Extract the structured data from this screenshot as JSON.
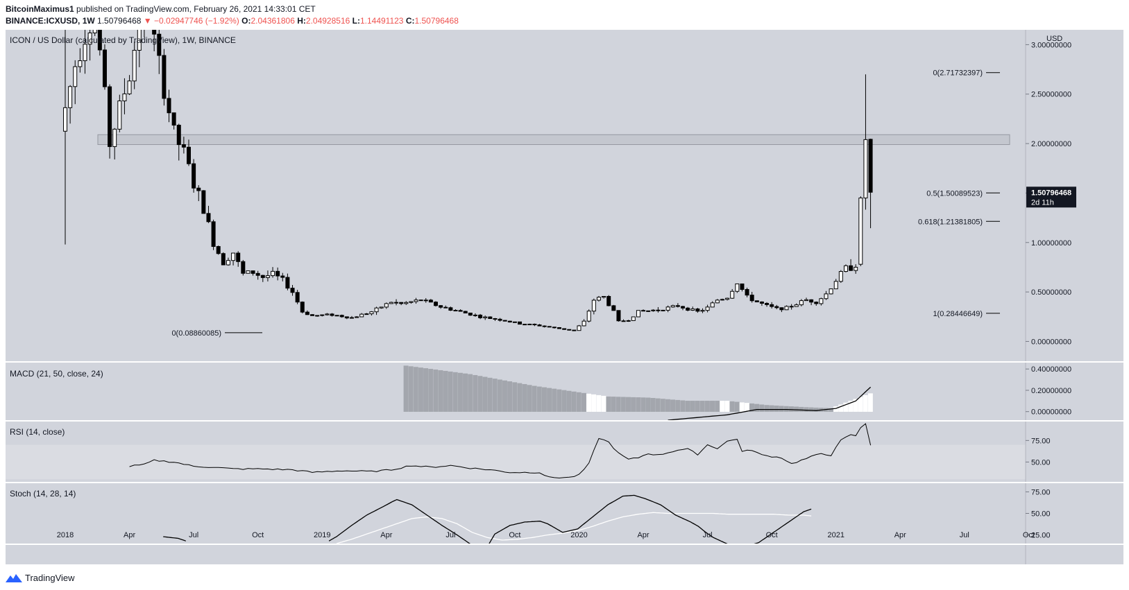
{
  "header": {
    "author": "BitcoinMaximus1",
    "published": "published on TradingView.com, February 26, 2021 14:33:01 CET",
    "symbol": "BINANCE:ICXUSD",
    "interval": "1W",
    "last": "1.50796468",
    "change": "−0.02947746 (−1.92%)",
    "o_label": "O:",
    "o": "2.04361806",
    "h_label": "H:",
    "h": "2.04928516",
    "l_label": "L:",
    "l": "1.14491123",
    "c_label": "C:",
    "c": "1.50796468"
  },
  "brand": "TradingView",
  "colors": {
    "panel_bg": "#d1d4dc",
    "rsi_band": "#dadce2",
    "text": "#131722",
    "down": "#ef5350",
    "price_tag": "#131722"
  },
  "chart_data": {
    "type": "candlestick",
    "title": "ICON / US Dollar (calculated by TradingView), 1W, BINANCE",
    "currency": "USD",
    "ylim": [
      -0.2,
      3.15
    ],
    "y_ticks": [
      "3.00000000",
      "2.50000000",
      "2.00000000",
      "1.50000000",
      "1.00000000",
      "0.50000000",
      "0.00000000"
    ],
    "y_tick_values": [
      3.0,
      2.5,
      2.0,
      1.5,
      1.0,
      0.5,
      0.0
    ],
    "x_ticks": [
      "2018",
      "Apr",
      "Jul",
      "Oct",
      "2019",
      "Apr",
      "Jul",
      "Oct",
      "2020",
      "Apr",
      "Jul",
      "Oct",
      "2021",
      "Apr",
      "Jul",
      "Oct"
    ],
    "x_tick_weeks": [
      0,
      13,
      26,
      39,
      52,
      65,
      78,
      91,
      104,
      117,
      130,
      143,
      156,
      169,
      182,
      195
    ],
    "last_price_label": "1.50796468",
    "countdown": "2d 11h",
    "resistance_zone": [
      1.99,
      2.09
    ],
    "fib_levels": [
      {
        "label": "0(2.71732397)",
        "value": 2.71732397
      },
      {
        "label": "0.5(1.50089523)",
        "value": 1.50089523
      },
      {
        "label": "0.618(1.21381805)",
        "value": 1.21381805
      },
      {
        "label": "1(0.28446649)",
        "value": 0.28446649
      }
    ],
    "low_marker": {
      "label": "0(0.08860085)",
      "value": 0.08860085
    },
    "close_anchors": [
      [
        -2,
        1.9
      ],
      [
        2,
        2.8
      ],
      [
        6,
        3.4
      ],
      [
        9,
        2.0
      ],
      [
        13,
        2.7
      ],
      [
        16,
        3.5
      ],
      [
        19,
        2.8
      ],
      [
        22,
        2.1
      ],
      [
        24,
        1.9
      ],
      [
        26,
        1.6
      ],
      [
        28,
        1.35
      ],
      [
        30,
        1.0
      ],
      [
        32,
        0.8
      ],
      [
        34,
        0.9
      ],
      [
        36,
        0.68
      ],
      [
        38,
        0.7
      ],
      [
        40,
        0.65
      ],
      [
        42,
        0.68
      ],
      [
        44,
        0.62
      ],
      [
        46,
        0.5
      ],
      [
        48,
        0.3
      ],
      [
        50,
        0.26
      ],
      [
        54,
        0.27
      ],
      [
        58,
        0.24
      ],
      [
        62,
        0.3
      ],
      [
        64,
        0.35
      ],
      [
        66,
        0.4
      ],
      [
        68,
        0.38
      ],
      [
        72,
        0.42
      ],
      [
        76,
        0.35
      ],
      [
        80,
        0.3
      ],
      [
        84,
        0.25
      ],
      [
        88,
        0.22
      ],
      [
        92,
        0.18
      ],
      [
        96,
        0.16
      ],
      [
        100,
        0.13
      ],
      [
        103,
        0.11
      ],
      [
        105,
        0.2
      ],
      [
        107,
        0.42
      ],
      [
        109,
        0.45
      ],
      [
        111,
        0.3
      ],
      [
        112,
        0.2
      ],
      [
        114,
        0.22
      ],
      [
        116,
        0.3
      ],
      [
        120,
        0.32
      ],
      [
        124,
        0.36
      ],
      [
        128,
        0.3
      ],
      [
        130,
        0.34
      ],
      [
        132,
        0.42
      ],
      [
        134,
        0.45
      ],
      [
        136,
        0.6
      ],
      [
        138,
        0.45
      ],
      [
        140,
        0.4
      ],
      [
        142,
        0.36
      ],
      [
        144,
        0.33
      ],
      [
        146,
        0.34
      ],
      [
        148,
        0.38
      ],
      [
        150,
        0.42
      ],
      [
        152,
        0.4
      ],
      [
        154,
        0.48
      ],
      [
        156,
        0.62
      ],
      [
        158,
        0.74
      ],
      [
        160,
        0.75
      ],
      [
        161,
        1.45
      ],
      [
        162,
        2.04
      ],
      [
        163,
        1.508
      ]
    ],
    "macd": {
      "label": "MACD (21, 50, close, 24)",
      "ylim": [
        -0.08,
        0.46
      ],
      "y_ticks": [
        "0.40000000",
        "0.20000000",
        "0.00000000"
      ],
      "y_tick_values": [
        0.4,
        0.2,
        0.0
      ],
      "hist_start_week": 69,
      "hist_end_week": 163,
      "hist_anchors": [
        [
          69,
          0.43
        ],
        [
          82,
          0.35
        ],
        [
          95,
          0.24
        ],
        [
          104,
          0.18
        ],
        [
          110,
          0.14
        ],
        [
          118,
          0.13
        ],
        [
          126,
          0.1
        ],
        [
          134,
          0.1
        ],
        [
          142,
          0.06
        ],
        [
          150,
          0.04
        ],
        [
          155,
          0.03
        ],
        [
          163,
          0.17
        ]
      ],
      "line_start_week": 122,
      "line_anchors": [
        [
          122,
          -0.08
        ],
        [
          134,
          -0.03
        ],
        [
          140,
          0.02
        ],
        [
          146,
          0.02
        ],
        [
          152,
          0.01
        ],
        [
          156,
          0.03
        ],
        [
          160,
          0.1
        ],
        [
          163,
          0.23
        ]
      ]
    },
    "rsi": {
      "label": "RSI (14, close)",
      "ylim": [
        27,
        97
      ],
      "band": [
        30,
        70
      ],
      "y_ticks": [
        "75.00",
        "50.00"
      ],
      "y_tick_values": [
        75,
        50
      ],
      "start_week": 13,
      "anchors": [
        [
          13,
          45
        ],
        [
          16,
          47
        ],
        [
          18,
          52
        ],
        [
          22,
          50
        ],
        [
          26,
          45
        ],
        [
          30,
          44
        ],
        [
          34,
          42
        ],
        [
          40,
          42
        ],
        [
          46,
          41
        ],
        [
          50,
          38
        ],
        [
          56,
          40
        ],
        [
          62,
          39
        ],
        [
          66,
          41
        ],
        [
          70,
          46
        ],
        [
          74,
          44
        ],
        [
          78,
          46
        ],
        [
          82,
          43
        ],
        [
          86,
          41
        ],
        [
          90,
          38
        ],
        [
          96,
          38
        ],
        [
          98,
          32
        ],
        [
          102,
          32
        ],
        [
          104,
          35
        ],
        [
          106,
          48
        ],
        [
          108,
          78
        ],
        [
          110,
          73
        ],
        [
          112,
          60
        ],
        [
          114,
          53
        ],
        [
          116,
          55
        ],
        [
          118,
          60
        ],
        [
          120,
          58
        ],
        [
          124,
          64
        ],
        [
          126,
          65
        ],
        [
          128,
          59
        ],
        [
          130,
          70
        ],
        [
          132,
          66
        ],
        [
          134,
          74
        ],
        [
          136,
          77
        ],
        [
          137,
          62
        ],
        [
          139,
          64
        ],
        [
          141,
          58
        ],
        [
          145,
          55
        ],
        [
          147,
          48
        ],
        [
          149,
          52
        ],
        [
          151,
          56
        ],
        [
          153,
          60
        ],
        [
          155,
          58
        ],
        [
          157,
          75
        ],
        [
          159,
          82
        ],
        [
          160,
          80
        ],
        [
          161,
          90
        ],
        [
          162,
          95
        ],
        [
          163,
          70
        ]
      ]
    },
    "stoch": {
      "label": "Stoch (14, 28, 14)",
      "ylim": [
        15,
        85
      ],
      "y_ticks": [
        "75.00",
        "50.00",
        "25.00"
      ],
      "y_tick_values": [
        75,
        50,
        25
      ],
      "k_segments": [
        [
          [
            26,
            23
          ],
          [
            30,
            21
          ],
          [
            32,
            18
          ]
        ],
        [
          [
            70,
            18
          ],
          [
            72,
            23
          ],
          [
            76,
            36
          ],
          [
            80,
            48
          ],
          [
            84,
            57
          ],
          [
            87,
            64
          ],
          [
            88,
            66
          ],
          [
            92,
            60
          ],
          [
            96,
            48
          ],
          [
            100,
            36
          ],
          [
            104,
            25
          ],
          [
            108,
            13
          ],
          [
            110,
            10
          ],
          [
            112,
            11
          ],
          [
            114,
            26
          ],
          [
            118,
            36
          ],
          [
            122,
            40
          ],
          [
            126,
            41
          ],
          [
            128,
            38
          ],
          [
            132,
            28
          ],
          [
            136,
            32
          ],
          [
            140,
            46
          ],
          [
            144,
            60
          ],
          [
            148,
            70
          ],
          [
            151,
            71
          ],
          [
            154,
            67
          ],
          [
            158,
            60
          ],
          [
            162,
            48
          ],
          [
            166,
            40
          ],
          [
            168,
            35
          ],
          [
            170,
            28
          ],
          [
            172,
            22
          ],
          [
            176,
            14
          ],
          [
            178,
            12
          ],
          [
            180,
            11
          ],
          [
            184,
            16
          ],
          [
            188,
            28
          ],
          [
            192,
            40
          ],
          [
            196,
            52
          ],
          [
            198,
            55
          ]
        ]
      ],
      "d_segments": [
        [
          [
            72,
            15
          ],
          [
            76,
            20
          ],
          [
            80,
            26
          ],
          [
            84,
            32
          ],
          [
            88,
            38
          ],
          [
            92,
            44
          ],
          [
            96,
            46
          ],
          [
            100,
            44
          ],
          [
            104,
            38
          ],
          [
            108,
            28
          ],
          [
            112,
            22
          ],
          [
            116,
            19
          ],
          [
            120,
            20
          ],
          [
            124,
            22
          ],
          [
            128,
            25
          ],
          [
            132,
            27
          ],
          [
            136,
            30
          ],
          [
            140,
            35
          ],
          [
            144,
            41
          ],
          [
            148,
            46
          ],
          [
            152,
            49
          ],
          [
            156,
            51
          ],
          [
            160,
            50
          ],
          [
            164,
            50
          ],
          [
            168,
            50
          ],
          [
            172,
            50
          ],
          [
            176,
            49
          ],
          [
            180,
            49
          ],
          [
            184,
            49
          ],
          [
            188,
            49
          ],
          [
            192,
            48
          ],
          [
            196,
            48
          ],
          [
            198,
            47
          ]
        ]
      ]
    }
  }
}
